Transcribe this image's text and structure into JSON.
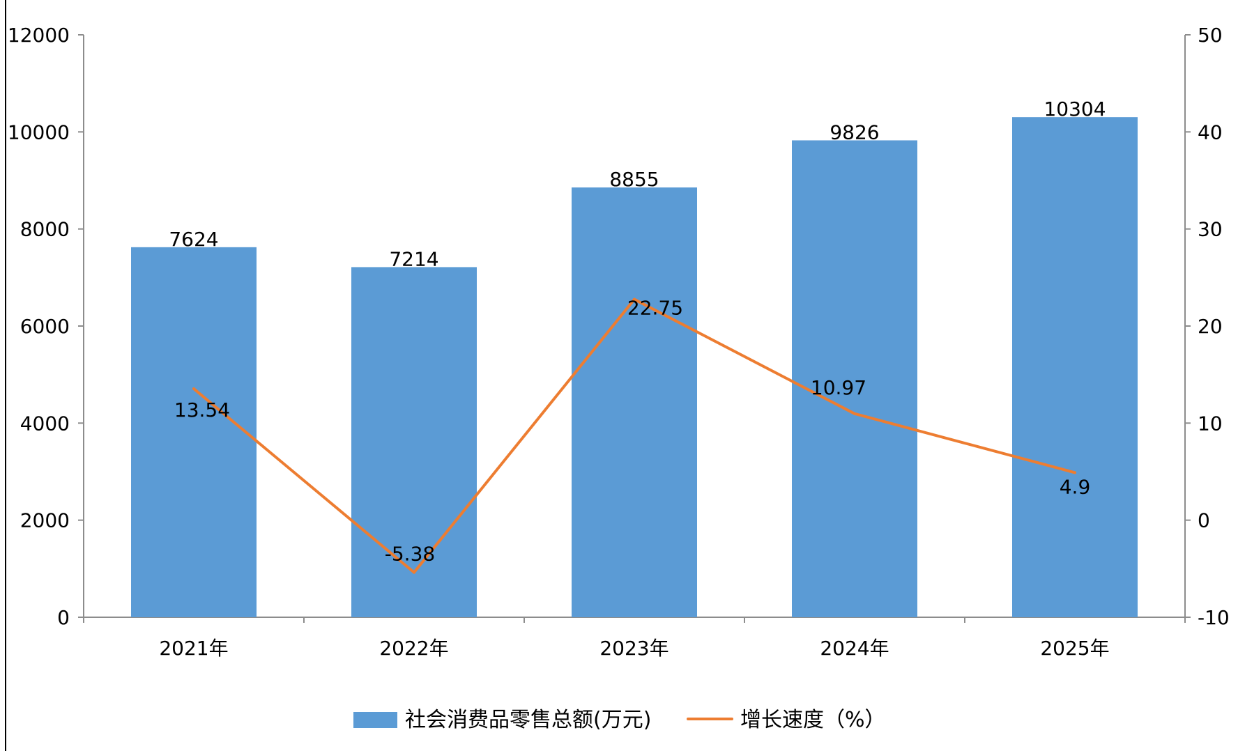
{
  "chart_data": {
    "type": "bar",
    "categories": [
      "2021年",
      "2022年",
      "2023年",
      "2024年",
      "2025年"
    ],
    "series": [
      {
        "name": "社会消费品零售总额(万元)",
        "type": "bar",
        "axis": "left",
        "values": [
          7624,
          7214,
          8855,
          9826,
          10304
        ],
        "color": "#5B9BD5"
      },
      {
        "name": "增长速度（%）",
        "type": "line",
        "axis": "right",
        "values": [
          13.54,
          -5.38,
          22.75,
          10.97,
          4.9
        ],
        "color": "#ED7D31"
      }
    ],
    "left_axis": {
      "ylim": [
        0,
        12000
      ],
      "ticks": [
        0,
        2000,
        4000,
        6000,
        8000,
        10000,
        12000
      ]
    },
    "right_axis": {
      "ylim": [
        -10,
        50
      ],
      "ticks": [
        -10,
        0,
        10,
        20,
        30,
        40,
        50
      ]
    },
    "title": "",
    "xlabel": "",
    "ylabel": "",
    "grid": false,
    "legend_position": "bottom"
  }
}
